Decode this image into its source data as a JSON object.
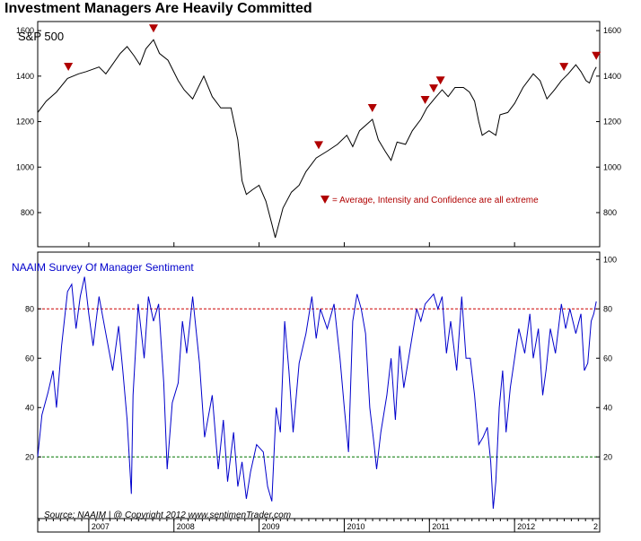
{
  "title": "Investment Managers Are Heavily Committed",
  "colors": {
    "price_line": "#000000",
    "sentiment_line": "#0000cc",
    "marker": "#b00000",
    "upper_band": "#cc0000",
    "lower_band": "#007700",
    "frame": "#000000"
  },
  "chart_data": [
    {
      "type": "line",
      "title": "S&P 500",
      "x_ticks": [
        "2007",
        "2008",
        "2009",
        "2010",
        "2011",
        "2012",
        "2"
      ],
      "y_ticks": [
        800,
        1000,
        1200,
        1400,
        1600
      ],
      "ylim": [
        650,
        1640
      ],
      "xlim": [
        2006.4,
        2013.0
      ],
      "series": [
        {
          "values": [
            [
              2006.4,
              1240
            ],
            [
              2006.5,
              1290
            ],
            [
              2006.62,
              1330
            ],
            [
              2006.75,
              1390
            ],
            [
              2006.88,
              1410
            ],
            [
              2006.97,
              1420
            ],
            [
              2007.12,
              1440
            ],
            [
              2007.2,
              1410
            ],
            [
              2007.37,
              1500
            ],
            [
              2007.45,
              1530
            ],
            [
              2007.53,
              1490
            ],
            [
              2007.6,
              1450
            ],
            [
              2007.67,
              1520
            ],
            [
              2007.76,
              1560
            ],
            [
              2007.83,
              1500
            ],
            [
              2007.93,
              1470
            ],
            [
              2008.05,
              1380
            ],
            [
              2008.12,
              1340
            ],
            [
              2008.22,
              1300
            ],
            [
              2008.35,
              1400
            ],
            [
              2008.45,
              1310
            ],
            [
              2008.55,
              1260
            ],
            [
              2008.67,
              1260
            ],
            [
              2008.75,
              1120
            ],
            [
              2008.8,
              940
            ],
            [
              2008.85,
              880
            ],
            [
              2008.92,
              900
            ],
            [
              2009.0,
              920
            ],
            [
              2009.08,
              850
            ],
            [
              2009.15,
              750
            ],
            [
              2009.19,
              690
            ],
            [
              2009.28,
              820
            ],
            [
              2009.38,
              890
            ],
            [
              2009.47,
              920
            ],
            [
              2009.55,
              980
            ],
            [
              2009.67,
              1040
            ],
            [
              2009.8,
              1070
            ],
            [
              2009.92,
              1100
            ],
            [
              2010.03,
              1140
            ],
            [
              2010.1,
              1090
            ],
            [
              2010.18,
              1160
            ],
            [
              2010.3,
              1200
            ],
            [
              2010.33,
              1210
            ],
            [
              2010.4,
              1120
            ],
            [
              2010.48,
              1070
            ],
            [
              2010.55,
              1030
            ],
            [
              2010.62,
              1110
            ],
            [
              2010.72,
              1100
            ],
            [
              2010.8,
              1160
            ],
            [
              2010.9,
              1210
            ],
            [
              2010.97,
              1260
            ],
            [
              2011.08,
              1310
            ],
            [
              2011.15,
              1340
            ],
            [
              2011.22,
              1310
            ],
            [
              2011.3,
              1350
            ],
            [
              2011.4,
              1350
            ],
            [
              2011.47,
              1330
            ],
            [
              2011.53,
              1290
            ],
            [
              2011.58,
              1200
            ],
            [
              2011.62,
              1140
            ],
            [
              2011.7,
              1160
            ],
            [
              2011.78,
              1140
            ],
            [
              2011.83,
              1230
            ],
            [
              2011.92,
              1240
            ],
            [
              2012.0,
              1280
            ],
            [
              2012.1,
              1350
            ],
            [
              2012.22,
              1410
            ],
            [
              2012.3,
              1380
            ],
            [
              2012.38,
              1300
            ],
            [
              2012.47,
              1340
            ],
            [
              2012.55,
              1380
            ],
            [
              2012.63,
              1410
            ],
            [
              2012.72,
              1450
            ],
            [
              2012.78,
              1420
            ],
            [
              2012.84,
              1380
            ],
            [
              2012.88,
              1370
            ],
            [
              2012.93,
              1420
            ],
            [
              2012.96,
              1440
            ]
          ]
        }
      ],
      "markers": [
        2006.76,
        2007.76,
        2009.7,
        2010.33,
        2010.95,
        2011.05,
        2011.13,
        2012.58,
        2012.96
      ],
      "annotations": [
        {
          "text": "= Average, Intensity and Confidence are all extreme"
        }
      ]
    },
    {
      "type": "line",
      "title": "NAAIM  Survey Of Manager Sentiment",
      "y_ticks": [
        20,
        40,
        60,
        80,
        100
      ],
      "ylim": [
        -5,
        103
      ],
      "reference_lines": [
        80,
        20
      ],
      "series": [
        {
          "values": [
            [
              2006.4,
              20
            ],
            [
              2006.45,
              37
            ],
            [
              2006.52,
              46
            ],
            [
              2006.58,
              55
            ],
            [
              2006.62,
              40
            ],
            [
              2006.68,
              65
            ],
            [
              2006.75,
              87
            ],
            [
              2006.8,
              90
            ],
            [
              2006.85,
              72
            ],
            [
              2006.9,
              85
            ],
            [
              2006.95,
              93
            ],
            [
              2007.0,
              78
            ],
            [
              2007.05,
              65
            ],
            [
              2007.12,
              85
            ],
            [
              2007.2,
              70
            ],
            [
              2007.28,
              55
            ],
            [
              2007.35,
              73
            ],
            [
              2007.4,
              55
            ],
            [
              2007.45,
              35
            ],
            [
              2007.5,
              5
            ],
            [
              2007.52,
              45
            ],
            [
              2007.58,
              82
            ],
            [
              2007.65,
              60
            ],
            [
              2007.7,
              85
            ],
            [
              2007.76,
              75
            ],
            [
              2007.82,
              82
            ],
            [
              2007.88,
              50
            ],
            [
              2007.92,
              15
            ],
            [
              2007.98,
              42
            ],
            [
              2008.05,
              50
            ],
            [
              2008.1,
              75
            ],
            [
              2008.15,
              62
            ],
            [
              2008.22,
              85
            ],
            [
              2008.3,
              58
            ],
            [
              2008.36,
              28
            ],
            [
              2008.45,
              45
            ],
            [
              2008.52,
              15
            ],
            [
              2008.58,
              35
            ],
            [
              2008.63,
              10
            ],
            [
              2008.7,
              30
            ],
            [
              2008.75,
              8
            ],
            [
              2008.8,
              18
            ],
            [
              2008.85,
              3
            ],
            [
              2008.9,
              14
            ],
            [
              2008.97,
              25
            ],
            [
              2009.05,
              22
            ],
            [
              2009.1,
              8
            ],
            [
              2009.15,
              2
            ],
            [
              2009.2,
              40
            ],
            [
              2009.25,
              30
            ],
            [
              2009.3,
              75
            ],
            [
              2009.35,
              55
            ],
            [
              2009.4,
              30
            ],
            [
              2009.47,
              58
            ],
            [
              2009.55,
              70
            ],
            [
              2009.62,
              85
            ],
            [
              2009.67,
              68
            ],
            [
              2009.72,
              80
            ],
            [
              2009.8,
              72
            ],
            [
              2009.88,
              82
            ],
            [
              2009.95,
              60
            ],
            [
              2010.0,
              40
            ],
            [
              2010.05,
              22
            ],
            [
              2010.1,
              75
            ],
            [
              2010.15,
              86
            ],
            [
              2010.2,
              80
            ],
            [
              2010.25,
              70
            ],
            [
              2010.3,
              40
            ],
            [
              2010.35,
              25
            ],
            [
              2010.38,
              15
            ],
            [
              2010.43,
              30
            ],
            [
              2010.5,
              45
            ],
            [
              2010.55,
              60
            ],
            [
              2010.6,
              35
            ],
            [
              2010.65,
              65
            ],
            [
              2010.7,
              48
            ],
            [
              2010.78,
              65
            ],
            [
              2010.85,
              80
            ],
            [
              2010.9,
              75
            ],
            [
              2010.95,
              82
            ],
            [
              2011.05,
              86
            ],
            [
              2011.1,
              80
            ],
            [
              2011.15,
              85
            ],
            [
              2011.2,
              62
            ],
            [
              2011.25,
              75
            ],
            [
              2011.32,
              55
            ],
            [
              2011.38,
              85
            ],
            [
              2011.43,
              60
            ],
            [
              2011.48,
              60
            ],
            [
              2011.53,
              45
            ],
            [
              2011.58,
              25
            ],
            [
              2011.63,
              28
            ],
            [
              2011.68,
              32
            ],
            [
              2011.72,
              18
            ],
            [
              2011.75,
              -1
            ],
            [
              2011.78,
              10
            ],
            [
              2011.82,
              40
            ],
            [
              2011.86,
              55
            ],
            [
              2011.9,
              30
            ],
            [
              2011.95,
              48
            ],
            [
              2012.0,
              60
            ],
            [
              2012.05,
              72
            ],
            [
              2012.12,
              62
            ],
            [
              2012.18,
              78
            ],
            [
              2012.22,
              60
            ],
            [
              2012.28,
              72
            ],
            [
              2012.33,
              45
            ],
            [
              2012.37,
              55
            ],
            [
              2012.42,
              72
            ],
            [
              2012.48,
              62
            ],
            [
              2012.55,
              82
            ],
            [
              2012.6,
              72
            ],
            [
              2012.65,
              80
            ],
            [
              2012.72,
              70
            ],
            [
              2012.78,
              78
            ],
            [
              2012.82,
              55
            ],
            [
              2012.86,
              58
            ],
            [
              2012.9,
              75
            ],
            [
              2012.93,
              78
            ],
            [
              2012.96,
              83
            ]
          ]
        }
      ],
      "source": "Source:  NAAIM  |    @ Copyright 2012   www.sentimenTrader.com"
    }
  ]
}
